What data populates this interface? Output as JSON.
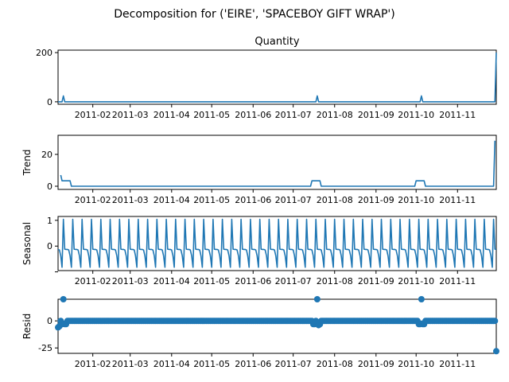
{
  "figure": {
    "suptitle": "Decomposition for ('EIRE', 'SPACEBOY GIFT WRAP')"
  },
  "colors": {
    "series": "#1f77b4",
    "axes": "#000000",
    "background": "#ffffff"
  },
  "chart_data": [
    {
      "type": "line",
      "title": "Quantity",
      "ylabel": "",
      "xlabel": "",
      "grid": false,
      "xlim": [
        "2011-01-06",
        "2011-11-30"
      ],
      "ylim": [
        -10,
        210
      ],
      "yticks": [
        0,
        200
      ],
      "xtick_labels": [
        "2011-02",
        "2011-03",
        "2011-04",
        "2011-05",
        "2011-06",
        "2011-07",
        "2011-08",
        "2011-09",
        "2011-10",
        "2011-11"
      ],
      "x": [
        "2011-01-06",
        "2011-01-09",
        "2011-01-10",
        "2011-01-11",
        "2011-07-18",
        "2011-07-19",
        "2011-07-20",
        "2011-10-04",
        "2011-10-05",
        "2011-10-06",
        "2011-11-29",
        "2011-11-30"
      ],
      "values": [
        0,
        0,
        24,
        0,
        0,
        24,
        0,
        0,
        24,
        0,
        0,
        200
      ]
    },
    {
      "type": "line",
      "title": "",
      "ylabel": "Trend",
      "xlabel": "",
      "grid": false,
      "xlim": [
        "2011-01-06",
        "2011-11-30"
      ],
      "ylim": [
        -2,
        32
      ],
      "yticks": [
        0,
        20
      ],
      "xtick_labels": [
        "2011-02",
        "2011-03",
        "2011-04",
        "2011-05",
        "2011-06",
        "2011-07",
        "2011-08",
        "2011-09",
        "2011-10",
        "2011-11"
      ],
      "x": [
        "2011-01-08",
        "2011-01-09",
        "2011-01-15",
        "2011-01-16",
        "2011-07-14",
        "2011-07-15",
        "2011-07-21",
        "2011-07-22",
        "2011-09-30",
        "2011-10-01",
        "2011-10-07",
        "2011-10-08",
        "2011-11-28",
        "2011-11-29"
      ],
      "values": [
        7,
        3.4,
        3.4,
        0,
        0,
        3.4,
        3.4,
        0,
        0,
        3.4,
        3.4,
        0,
        0,
        28.6
      ]
    },
    {
      "type": "line",
      "title": "",
      "ylabel": "Seasonal",
      "xlabel": "",
      "grid": false,
      "xlim": [
        "2011-01-06",
        "2011-11-30"
      ],
      "ylim": [
        -0.95,
        1.15
      ],
      "yticks": [
        -1,
        0,
        1
      ],
      "ytick_labels": [
        "",
        "0",
        "1"
      ],
      "xtick_labels": [
        "2011-02",
        "2011-03",
        "2011-04",
        "2011-05",
        "2011-06",
        "2011-07",
        "2011-08",
        "2011-09",
        "2011-10",
        "2011-11"
      ],
      "period_days": 7,
      "start_date": "2011-01-06",
      "end_date": "2011-11-30",
      "weekly_pattern": [
        -0.13,
        -0.15,
        -0.38,
        -0.82,
        1.04,
        -0.12,
        -0.13
      ]
    },
    {
      "type": "scatter",
      "title": "",
      "ylabel": "Resid",
      "xlabel": "",
      "grid": false,
      "xlim": [
        "2011-01-06",
        "2011-11-30"
      ],
      "ylim": [
        -30,
        20
      ],
      "yticks": [
        -25,
        0
      ],
      "xtick_labels": [
        "2011-02",
        "2011-03",
        "2011-04",
        "2011-05",
        "2011-06",
        "2011-07",
        "2011-08",
        "2011-09",
        "2011-10",
        "2011-11"
      ],
      "baseline": 0,
      "start_date": "2011-01-06",
      "end_date": "2011-11-30",
      "outliers": [
        {
          "x": "2011-01-06",
          "y": -6
        },
        {
          "x": "2011-01-07",
          "y": -5
        },
        {
          "x": "2011-01-09",
          "y": -3
        },
        {
          "x": "2011-01-10",
          "y": 20
        },
        {
          "x": "2011-01-11",
          "y": -3
        },
        {
          "x": "2011-01-12",
          "y": -3
        },
        {
          "x": "2011-07-16",
          "y": -3
        },
        {
          "x": "2011-07-17",
          "y": -3
        },
        {
          "x": "2011-07-19",
          "y": 20
        },
        {
          "x": "2011-07-20",
          "y": -4
        },
        {
          "x": "2011-07-21",
          "y": -3
        },
        {
          "x": "2011-10-03",
          "y": -3
        },
        {
          "x": "2011-10-04",
          "y": -3
        },
        {
          "x": "2011-10-05",
          "y": 20
        },
        {
          "x": "2011-10-06",
          "y": -3
        },
        {
          "x": "2011-10-07",
          "y": -3
        },
        {
          "x": "2011-11-30",
          "y": -28
        }
      ]
    }
  ]
}
